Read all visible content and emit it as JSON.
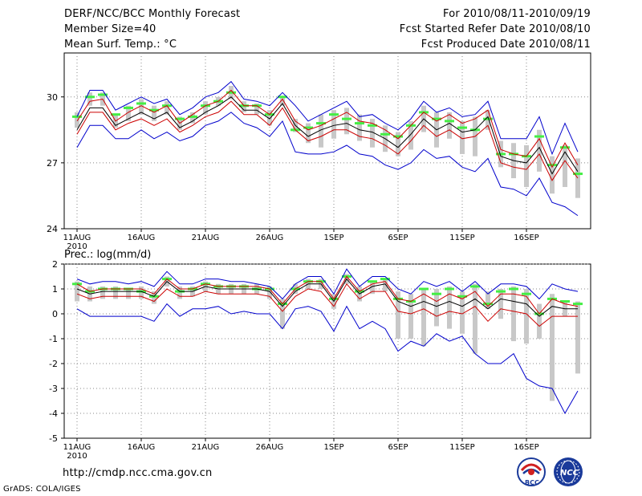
{
  "header": {
    "title": "DERF/NCC/BCC Monthly Forecast",
    "member_size": "Member Size=40",
    "variable": "Mean Surf. Temp.: °C",
    "period": "For 2010/08/11-2010/09/19",
    "started": "Fcst Started Refer Date 2010/08/10",
    "produced": "Fcst Produced Date 2010/08/11"
  },
  "footer": {
    "url": "http://cmdp.ncc.cma.gov.cn",
    "credit": "GrADS: COLA/IGES",
    "logo_left_text": "BCC",
    "logo_right_text": "NCC"
  },
  "colors": {
    "max_min_line": "#0000cc",
    "mean_line": "#000000",
    "spread_line": "#cc0000",
    "box": "#c8c8c8",
    "median": "#44ee44",
    "grid": "#888888"
  },
  "chart_data": [
    {
      "type": "line",
      "title": "Mean Surf. Temp.: °C",
      "xlabel": "",
      "ylabel": "°C",
      "x_ticks": [
        "11AUG",
        "16AUG",
        "21AUG",
        "26AUG",
        "1SEP",
        "6SEP",
        "11SEP",
        "16SEP"
      ],
      "x_year_label": "2010",
      "ylim": [
        24,
        32
      ],
      "y_ticks": [
        24,
        27,
        30
      ],
      "y_tick_labels": [
        "24",
        "27",
        "30"
      ],
      "days": 40,
      "series": [
        {
          "name": "max",
          "color": "#0000cc",
          "values": [
            29.1,
            30.3,
            30.3,
            29.4,
            29.7,
            30.0,
            29.7,
            29.9,
            29.2,
            29.5,
            30.0,
            30.2,
            30.7,
            29.9,
            29.8,
            29.6,
            30.2,
            29.6,
            28.9,
            29.2,
            29.5,
            29.8,
            29.1,
            29.2,
            28.8,
            28.5,
            29.0,
            29.8,
            29.3,
            29.5,
            29.1,
            29.2,
            29.8,
            28.1,
            28.1,
            28.1,
            29.1,
            27.4,
            28.8,
            27.5
          ]
        },
        {
          "name": "+spread",
          "color": "#cc0000",
          "values": [
            28.9,
            29.8,
            29.9,
            28.9,
            29.3,
            29.6,
            29.3,
            29.6,
            28.8,
            29.2,
            29.6,
            29.8,
            30.3,
            29.6,
            29.6,
            29.2,
            29.9,
            28.9,
            28.5,
            28.7,
            29.0,
            29.3,
            28.9,
            28.8,
            28.5,
            28.1,
            28.7,
            29.3,
            28.9,
            29.2,
            28.8,
            29.0,
            29.4,
            27.6,
            27.4,
            27.3,
            28.1,
            26.8,
            27.9,
            26.9
          ]
        },
        {
          "name": "mean",
          "color": "#000000",
          "values": [
            28.5,
            29.5,
            29.5,
            28.7,
            29.0,
            29.3,
            29.0,
            29.3,
            28.6,
            28.9,
            29.3,
            29.6,
            30.0,
            29.4,
            29.4,
            29.0,
            29.7,
            28.7,
            28.2,
            28.5,
            28.7,
            28.8,
            28.5,
            28.4,
            28.1,
            27.7,
            28.3,
            29.0,
            28.5,
            28.8,
            28.4,
            28.5,
            29.1,
            27.3,
            27.1,
            27.0,
            27.7,
            26.5,
            27.5,
            26.6
          ]
        },
        {
          "name": "-spread",
          "color": "#cc0000",
          "values": [
            28.3,
            29.3,
            29.3,
            28.5,
            28.8,
            29.0,
            28.7,
            29.0,
            28.4,
            28.7,
            29.1,
            29.3,
            29.8,
            29.2,
            29.2,
            28.7,
            29.5,
            28.5,
            28.0,
            28.2,
            28.5,
            28.5,
            28.2,
            28.1,
            27.8,
            27.4,
            28.0,
            28.7,
            28.2,
            28.5,
            28.1,
            28.2,
            28.7,
            27.0,
            26.8,
            26.7,
            27.4,
            26.2,
            27.1,
            26.3
          ]
        },
        {
          "name": "min",
          "color": "#0000cc",
          "values": [
            27.7,
            28.7,
            28.7,
            28.1,
            28.1,
            28.5,
            28.1,
            28.4,
            28.0,
            28.2,
            28.7,
            28.9,
            29.3,
            28.8,
            28.6,
            28.2,
            28.9,
            27.5,
            27.4,
            27.4,
            27.5,
            27.8,
            27.4,
            27.3,
            26.9,
            26.7,
            27.0,
            27.6,
            27.2,
            27.3,
            26.8,
            26.6,
            27.2,
            25.9,
            25.8,
            25.5,
            26.3,
            25.2,
            25.0,
            24.6
          ]
        }
      ],
      "boxes": {
        "low": [
          28.6,
          29.6,
          29.6,
          28.6,
          28.9,
          29.2,
          28.9,
          29.2,
          28.5,
          28.8,
          29.2,
          29.6,
          29.9,
          29.3,
          29.2,
          28.7,
          29.6,
          28.4,
          27.9,
          27.7,
          28.1,
          28.3,
          28.0,
          27.7,
          27.5,
          27.3,
          27.6,
          28.4,
          27.7,
          28.1,
          27.4,
          27.3,
          28.5,
          26.8,
          26.3,
          25.9,
          26.6,
          25.6,
          25.9,
          25.4
        ],
        "high": [
          29.3,
          30.2,
          30.2,
          29.2,
          29.6,
          29.9,
          29.6,
          29.8,
          29.1,
          29.3,
          29.8,
          30.0,
          30.5,
          29.8,
          29.7,
          29.4,
          30.0,
          29.0,
          28.8,
          29.2,
          29.4,
          29.5,
          29.2,
          29.0,
          28.7,
          28.4,
          28.9,
          29.6,
          29.3,
          29.3,
          28.9,
          29.1,
          29.4,
          28.0,
          27.9,
          27.8,
          28.5,
          27.3,
          27.8,
          27.2
        ],
        "median": [
          29.1,
          30.0,
          30.1,
          29.2,
          29.5,
          29.7,
          29.4,
          29.6,
          29.0,
          29.1,
          29.6,
          29.8,
          30.2,
          29.6,
          29.6,
          29.2,
          30.0,
          28.5,
          28.6,
          28.8,
          29.2,
          29.0,
          28.8,
          28.7,
          28.3,
          28.2,
          28.7,
          29.3,
          29.0,
          28.9,
          28.6,
          28.5,
          29.0,
          27.4,
          27.4,
          27.3,
          28.2,
          26.9,
          27.7,
          26.5
        ]
      }
    },
    {
      "type": "line",
      "title": "Prec.: log(mm/d)",
      "xlabel": "",
      "ylabel": "log(mm/d)",
      "x_ticks": [
        "11AUG",
        "16AUG",
        "21AUG",
        "26AUG",
        "1SEP",
        "6SEP",
        "11SEP",
        "16SEP"
      ],
      "x_year_label": "2010",
      "ylim": [
        -5,
        2
      ],
      "y_ticks": [
        -5,
        -4,
        -3,
        -2,
        -1,
        0,
        1,
        2
      ],
      "y_tick_labels": [
        "-5",
        "-4",
        "-3",
        "-2",
        "-1",
        "0",
        "1",
        "2"
      ],
      "days": 40,
      "series": [
        {
          "name": "max",
          "color": "#0000cc",
          "values": [
            1.4,
            1.2,
            1.3,
            1.3,
            1.2,
            1.3,
            1.1,
            1.7,
            1.2,
            1.2,
            1.4,
            1.4,
            1.3,
            1.3,
            1.2,
            1.1,
            0.6,
            1.2,
            1.5,
            1.5,
            0.8,
            1.8,
            1.1,
            1.5,
            1.5,
            1.0,
            0.8,
            1.3,
            1.1,
            1.3,
            0.9,
            1.3,
            0.8,
            1.2,
            1.2,
            1.1,
            0.6,
            1.2,
            1.0,
            0.9
          ]
        },
        {
          "name": "+spread",
          "color": "#cc0000",
          "values": [
            1.2,
            0.9,
            1.0,
            1.0,
            1.0,
            1.0,
            0.8,
            1.4,
            1.0,
            1.0,
            1.2,
            1.1,
            1.1,
            1.1,
            1.1,
            1.0,
            0.4,
            1.0,
            1.3,
            1.3,
            0.6,
            1.5,
            0.9,
            1.2,
            1.3,
            0.6,
            0.5,
            0.8,
            0.5,
            0.8,
            0.6,
            0.9,
            0.3,
            0.8,
            0.8,
            0.7,
            0.0,
            0.6,
            0.4,
            0.3
          ]
        },
        {
          "name": "mean",
          "color": "#000000",
          "values": [
            1.0,
            0.8,
            0.9,
            0.9,
            0.9,
            0.9,
            0.7,
            1.3,
            0.9,
            0.9,
            1.1,
            1.0,
            1.0,
            1.0,
            1.0,
            0.9,
            0.3,
            0.9,
            1.2,
            1.2,
            0.5,
            1.4,
            0.8,
            1.1,
            1.2,
            0.5,
            0.3,
            0.5,
            0.3,
            0.5,
            0.3,
            0.6,
            0.2,
            0.6,
            0.5,
            0.4,
            -0.1,
            0.3,
            0.2,
            0.2
          ]
        },
        {
          "name": "-spread",
          "color": "#cc0000",
          "values": [
            0.8,
            0.6,
            0.7,
            0.7,
            0.7,
            0.7,
            0.5,
            1.0,
            0.7,
            0.7,
            0.9,
            0.8,
            0.8,
            0.8,
            0.8,
            0.7,
            0.1,
            0.7,
            1.0,
            0.9,
            0.3,
            1.2,
            0.6,
            0.9,
            0.9,
            0.1,
            0.0,
            0.2,
            -0.1,
            0.1,
            0.0,
            0.3,
            -0.3,
            0.2,
            0.1,
            0.0,
            -0.5,
            -0.1,
            -0.1,
            -0.1
          ]
        },
        {
          "name": "min",
          "color": "#0000cc",
          "values": [
            0.2,
            -0.1,
            -0.1,
            -0.1,
            -0.1,
            -0.1,
            -0.3,
            0.4,
            -0.1,
            0.2,
            0.2,
            0.3,
            0.0,
            0.1,
            0.0,
            0.0,
            -0.6,
            0.2,
            0.3,
            0.1,
            -0.7,
            0.3,
            -0.6,
            -0.3,
            -0.6,
            -1.5,
            -1.1,
            -1.3,
            -0.8,
            -1.1,
            -0.9,
            -1.6,
            -2.0,
            -2.0,
            -1.6,
            -2.6,
            -2.9,
            -3.0,
            -4.0,
            -3.1
          ]
        }
      ],
      "boxes": {
        "low": [
          0.5,
          0.5,
          0.6,
          0.6,
          0.6,
          0.6,
          0.4,
          1.1,
          0.6,
          0.7,
          0.9,
          0.8,
          0.8,
          0.8,
          0.8,
          0.6,
          -0.6,
          0.8,
          1.0,
          1.0,
          0.2,
          1.2,
          0.5,
          0.8,
          0.9,
          -1.0,
          -1.0,
          -1.3,
          -0.5,
          -0.6,
          -0.8,
          -1.6,
          0.2,
          -0.2,
          -1.1,
          -1.2,
          -1.0,
          -3.5,
          -0.1,
          -2.4
        ],
        "high": [
          1.3,
          1.1,
          1.1,
          1.1,
          1.0,
          1.1,
          0.9,
          1.5,
          1.1,
          1.1,
          1.3,
          1.2,
          1.2,
          1.2,
          1.2,
          1.1,
          0.6,
          1.2,
          1.4,
          1.4,
          0.8,
          1.6,
          1.1,
          1.3,
          1.4,
          0.9,
          0.8,
          1.0,
          1.0,
          1.1,
          0.9,
          1.2,
          0.9,
          1.0,
          1.1,
          1.0,
          0.4,
          0.8,
          0.5,
          0.5
        ],
        "median": [
          1.2,
          0.9,
          1.0,
          1.0,
          1.0,
          0.9,
          0.7,
          1.4,
          0.9,
          1.0,
          1.2,
          1.1,
          1.1,
          1.1,
          1.0,
          1.0,
          0.4,
          1.0,
          1.3,
          1.3,
          0.6,
          1.5,
          0.9,
          1.3,
          1.4,
          0.6,
          0.5,
          1.0,
          0.8,
          1.0,
          0.7,
          1.1,
          0.4,
          0.9,
          1.0,
          0.8,
          0.0,
          0.6,
          0.5,
          0.4
        ]
      }
    }
  ]
}
